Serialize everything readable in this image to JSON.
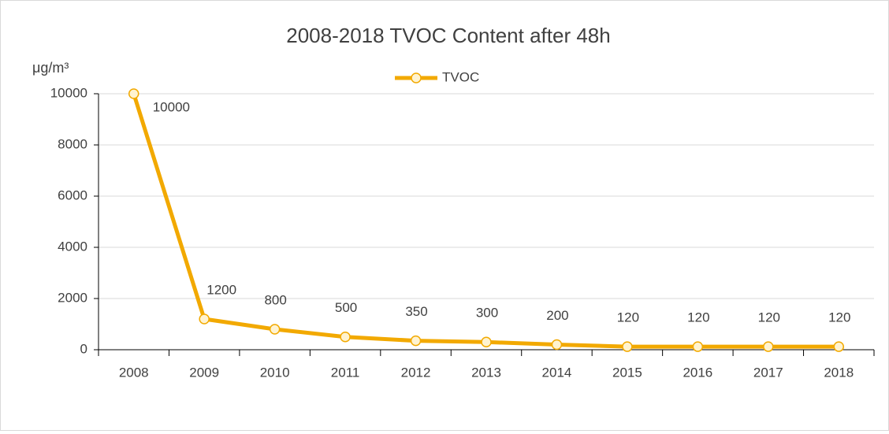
{
  "chart_data": {
    "type": "line",
    "title": "2008-2018 TVOC Content after 48h",
    "y_label": "μg/m³",
    "categories": [
      "2008",
      "2009",
      "2010",
      "2011",
      "2012",
      "2013",
      "2014",
      "2015",
      "2016",
      "2017",
      "2018"
    ],
    "series": [
      {
        "name": "TVOC",
        "color": "#f2a900",
        "values": [
          10000,
          1200,
          800,
          500,
          350,
          300,
          200,
          120,
          120,
          120,
          120
        ]
      }
    ],
    "ylim": [
      0,
      10000
    ],
    "yticks": [
      0,
      2000,
      4000,
      6000,
      8000,
      10000
    ],
    "grid": true,
    "legend": "top"
  }
}
